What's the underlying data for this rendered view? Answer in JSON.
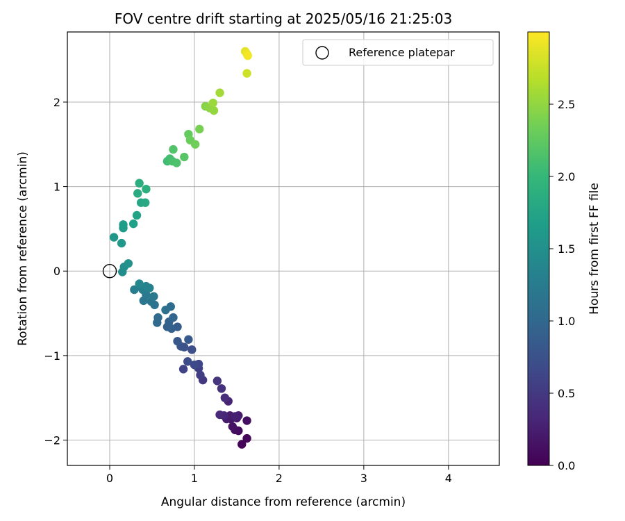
{
  "chart_data": {
    "type": "scatter",
    "title": "FOV centre drift starting at 2025/05/16 21:25:03",
    "xlabel": "Angular distance from reference (arcmin)",
    "ylabel": "Rotation from reference (arcmin)",
    "xlim": [
      -0.5,
      4.6
    ],
    "ylim": [
      -2.3,
      2.83
    ],
    "xticks": [
      0,
      1,
      2,
      3,
      4
    ],
    "xtick_labels": [
      "0",
      "1",
      "2",
      "3",
      "4"
    ],
    "yticks": [
      -2,
      -1,
      0,
      1,
      2
    ],
    "ytick_labels": [
      "−2",
      "−1",
      "0",
      "1",
      "2"
    ],
    "grid": true,
    "legend": {
      "location": "top-right",
      "entries": [
        "Reference platepar"
      ]
    },
    "reference_point": {
      "x": 0,
      "y": 0,
      "label": "Reference platepar"
    },
    "colorbar": {
      "label": "Hours from first FF file",
      "colormap": "viridis",
      "range": [
        0,
        3.0
      ],
      "ticks": [
        0.0,
        0.5,
        1.0,
        1.5,
        2.0,
        2.5
      ],
      "tick_labels": [
        "0.0",
        "0.5",
        "1.0",
        "1.5",
        "2.0",
        "2.5"
      ]
    },
    "series": [
      {
        "points": [
          [
            1.56,
            -2.05,
            0.02
          ],
          [
            1.62,
            -1.98,
            0.05
          ],
          [
            1.52,
            -1.89,
            0.08
          ],
          [
            1.48,
            -1.88,
            0.1
          ],
          [
            1.62,
            -1.77,
            0.12
          ],
          [
            1.45,
            -1.84,
            0.15
          ],
          [
            1.5,
            -1.74,
            0.17
          ],
          [
            1.43,
            -1.75,
            0.19
          ],
          [
            1.38,
            -1.75,
            0.21
          ],
          [
            1.42,
            -1.71,
            0.23
          ],
          [
            1.52,
            -1.71,
            0.25
          ],
          [
            1.48,
            -1.72,
            0.27
          ],
          [
            1.4,
            -1.54,
            0.3
          ],
          [
            1.35,
            -1.71,
            0.32
          ],
          [
            1.3,
            -1.7,
            0.35
          ],
          [
            1.36,
            -1.5,
            0.38
          ],
          [
            1.32,
            -1.39,
            0.42
          ],
          [
            1.27,
            -1.3,
            0.45
          ],
          [
            1.1,
            -1.29,
            0.49
          ],
          [
            1.07,
            -1.23,
            0.53
          ],
          [
            1.05,
            -1.15,
            0.56
          ],
          [
            0.87,
            -1.16,
            0.6
          ],
          [
            1.05,
            -1.1,
            0.63
          ],
          [
            1.0,
            -1.11,
            0.66
          ],
          [
            0.92,
            -1.07,
            0.69
          ],
          [
            0.97,
            -0.93,
            0.72
          ],
          [
            0.88,
            -0.9,
            0.75
          ],
          [
            0.84,
            -0.89,
            0.78
          ],
          [
            0.8,
            -0.83,
            0.81
          ],
          [
            0.93,
            -0.81,
            0.84
          ],
          [
            0.8,
            -0.66,
            0.87
          ],
          [
            0.73,
            -0.68,
            0.9
          ],
          [
            0.68,
            -0.66,
            0.93
          ],
          [
            0.7,
            -0.6,
            0.95
          ],
          [
            0.75,
            -0.55,
            0.98
          ],
          [
            0.56,
            -0.61,
            1.01
          ],
          [
            0.57,
            -0.55,
            1.04
          ],
          [
            0.72,
            -0.42,
            1.07
          ],
          [
            0.66,
            -0.46,
            1.1
          ],
          [
            0.53,
            -0.4,
            1.13
          ],
          [
            0.49,
            -0.36,
            1.15
          ],
          [
            0.4,
            -0.35,
            1.18
          ],
          [
            0.52,
            -0.3,
            1.2
          ],
          [
            0.43,
            -0.28,
            1.22
          ],
          [
            0.39,
            -0.22,
            1.25
          ],
          [
            0.29,
            -0.22,
            1.28
          ],
          [
            0.37,
            -0.19,
            1.3
          ],
          [
            0.47,
            -0.2,
            1.32
          ],
          [
            0.43,
            -0.18,
            1.35
          ],
          [
            0.35,
            -0.15,
            1.38
          ],
          [
            0.15,
            -0.01,
            1.46
          ],
          [
            0.17,
            0.05,
            1.49
          ],
          [
            0.22,
            0.09,
            1.52
          ],
          [
            0.05,
            0.4,
            1.58
          ],
          [
            0.14,
            0.33,
            1.61
          ],
          [
            0.16,
            0.51,
            1.64
          ],
          [
            0.16,
            0.55,
            1.67
          ],
          [
            0.28,
            0.56,
            1.7
          ],
          [
            0.32,
            0.66,
            1.73
          ],
          [
            0.37,
            0.81,
            1.77
          ],
          [
            0.42,
            0.81,
            1.8
          ],
          [
            0.33,
            0.92,
            1.83
          ],
          [
            0.35,
            1.04,
            1.86
          ],
          [
            0.43,
            0.97,
            1.89
          ],
          [
            0.68,
            1.3,
            2.06
          ],
          [
            0.71,
            1.33,
            2.09
          ],
          [
            0.74,
            1.3,
            2.12
          ],
          [
            0.79,
            1.28,
            2.14
          ],
          [
            0.75,
            1.44,
            2.17
          ],
          [
            0.88,
            1.35,
            2.2
          ],
          [
            0.93,
            1.62,
            2.28
          ],
          [
            0.95,
            1.55,
            2.31
          ],
          [
            1.01,
            1.5,
            2.34
          ],
          [
            1.06,
            1.68,
            2.38
          ],
          [
            1.13,
            1.95,
            2.45
          ],
          [
            1.18,
            1.93,
            2.48
          ],
          [
            1.23,
            1.9,
            2.51
          ],
          [
            1.22,
            1.99,
            2.54
          ],
          [
            1.3,
            2.11,
            2.58
          ],
          [
            1.62,
            2.34,
            2.78
          ],
          [
            1.6,
            2.6,
            2.88
          ],
          [
            1.62,
            2.57,
            2.92
          ],
          [
            1.63,
            2.55,
            2.95
          ]
        ]
      }
    ]
  }
}
